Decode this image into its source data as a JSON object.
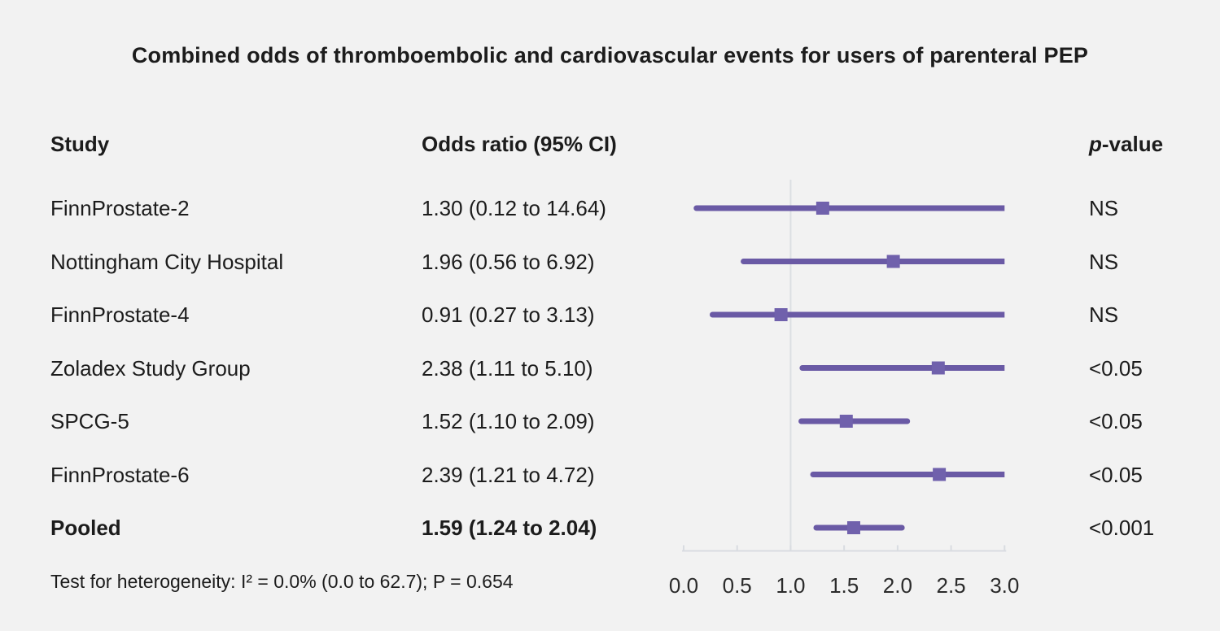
{
  "title": "Combined odds of thromboembolic and cardiovascular events for users of parenteral PEP",
  "columns": {
    "study": "Study",
    "odds_ratio": "Odds ratio (95% CI)",
    "p_value_italic": "p",
    "p_value_rest": "-value"
  },
  "footer": {
    "heterogeneity": "Test for heterogeneity: I² = 0.0% (0.0 to 62.7); P = 0.654"
  },
  "colors": {
    "background": "#f2f2f2",
    "ci_line": "#6a5aa5",
    "marker": "#7061ac",
    "axis_line": "#d9dce1",
    "reference_line": "#dcdfe3",
    "text": "#1c1c1c"
  },
  "chart_data": {
    "type": "forest",
    "title": "Combined odds of thromboembolic and cardiovascular events for users of parenteral PEP",
    "xlabel": "",
    "xlim": [
      0,
      3
    ],
    "x_ticks": [
      0.0,
      0.5,
      1.0,
      1.5,
      2.0,
      2.5,
      3.0
    ],
    "x_tick_labels": [
      "0.0",
      "0.5",
      "1.0",
      "1.5",
      "2.0",
      "2.5",
      "3.0"
    ],
    "reference_value": 1.0,
    "rows": [
      {
        "study": "FinnProstate-2",
        "or_text": "1.30 (0.12 to 14.64)",
        "p": "NS",
        "est": 1.3,
        "lo": 0.12,
        "hi": 14.64,
        "bold": false
      },
      {
        "study": "Nottingham City Hospital",
        "or_text": "1.96 (0.56 to 6.92)",
        "p": "NS",
        "est": 1.96,
        "lo": 0.56,
        "hi": 6.92,
        "bold": false
      },
      {
        "study": "FinnProstate-4",
        "or_text": "0.91 (0.27 to 3.13)",
        "p": "NS",
        "est": 0.91,
        "lo": 0.27,
        "hi": 3.13,
        "bold": false
      },
      {
        "study": "Zoladex Study Group",
        "or_text": "2.38 (1.11 to 5.10)",
        "p": "<0.05",
        "est": 2.38,
        "lo": 1.11,
        "hi": 5.1,
        "bold": false
      },
      {
        "study": "SPCG-5",
        "or_text": "1.52 (1.10 to 2.09)",
        "p": "<0.05",
        "est": 1.52,
        "lo": 1.1,
        "hi": 2.09,
        "bold": false
      },
      {
        "study": "FinnProstate-6",
        "or_text": "2.39 (1.21 to 4.72)",
        "p": "<0.05",
        "est": 2.39,
        "lo": 1.21,
        "hi": 4.72,
        "bold": false
      },
      {
        "study": "Pooled",
        "or_text": "1.59 (1.24 to 2.04)",
        "p": "<0.001",
        "est": 1.59,
        "lo": 1.24,
        "hi": 2.04,
        "bold": true
      }
    ]
  }
}
